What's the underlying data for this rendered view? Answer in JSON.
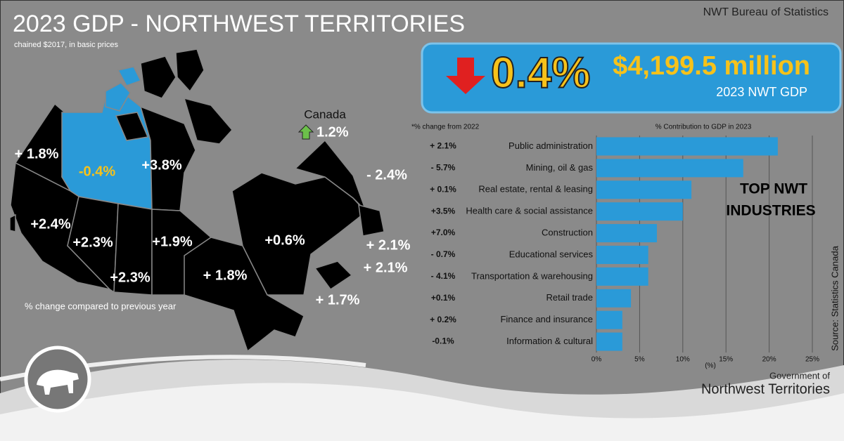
{
  "header": {
    "title": "2023 GDP - NORTHWEST TERRITORIES",
    "subtitle": "chained $2017, in basic prices",
    "publisher": "NWT Bureau of Statistics"
  },
  "headline": {
    "change": "0.4%",
    "gdp": "$4,199.5 million",
    "gdp_label": "2023 NWT GDP"
  },
  "map": {
    "canada_label": "Canada",
    "canada_change": "1.2%",
    "note": "% change compared to previous year",
    "regions": [
      "+ 1.8%",
      "-0.4%",
      "+3.8%",
      "- 2.4%",
      "+2.4%",
      "+2.3%",
      "+2.3%",
      "+1.9%",
      "+ 1.8%",
      "+0.6%",
      "+ 2.1%",
      "+ 2.1%",
      "+ 1.7%"
    ]
  },
  "chart_data": {
    "type": "hbar",
    "title": "% Contribution to GDP in 2023",
    "note": "*% change from 2022",
    "xlabel": "(%)",
    "annotation": [
      "TOP NWT",
      "INDUSTRIES"
    ],
    "source": "Source: Statistics Canada",
    "categories": [
      "Public administration",
      "Mining, oil & gas",
      "Real estate, rental & leasing",
      "Health care & social assistance",
      "Construction",
      "Educational services",
      "Transportation & warehousing",
      "Retail trade",
      "Finance and insurance",
      "Information & cultural"
    ],
    "values": [
      21,
      17,
      11,
      10,
      7,
      6,
      6,
      4,
      3,
      3
    ],
    "changes": [
      "+ 2.1%",
      "- 5.7%",
      "+ 0.1%",
      "+3.5%",
      "+7.0%",
      "- 0.7%",
      "- 4.1%",
      "+0.1%",
      "+ 0.2%",
      "-0.1%"
    ],
    "color": "#2a9ad8",
    "xlim": [
      0,
      25
    ],
    "xticks": [
      {
        "value": 0,
        "label": "0%"
      },
      {
        "value": 5,
        "label": "5%"
      },
      {
        "value": 10,
        "label": "10%"
      },
      {
        "value": 15,
        "label": "15%"
      },
      {
        "value": 20,
        "label": "20%"
      },
      {
        "value": 25,
        "label": "25%"
      }
    ],
    "grid": true
  },
  "footer": {
    "line1": "Government of",
    "line2": "Northwest Territories"
  }
}
